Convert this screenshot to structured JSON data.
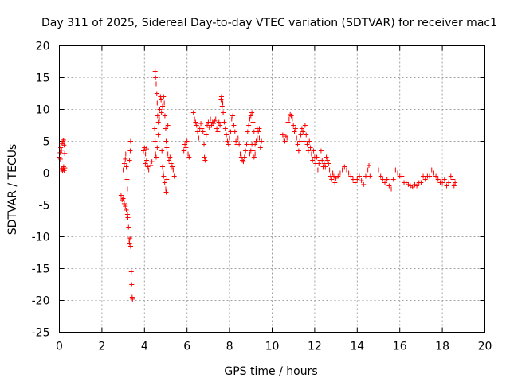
{
  "chart_data": {
    "type": "scatter",
    "title": "Day 311 of 2025, Sidereal Day-to-day VTEC variation (SDTVAR) for receiver mac1",
    "xlabel": "GPS time / hours",
    "ylabel": "SDTVAR / TECUs",
    "xlim": [
      0,
      20
    ],
    "ylim": [
      -25,
      20
    ],
    "xticks": [
      0,
      2,
      4,
      6,
      8,
      10,
      12,
      14,
      16,
      18,
      20
    ],
    "yticks": [
      -25,
      -20,
      -15,
      -10,
      -5,
      0,
      5,
      10,
      15,
      20
    ],
    "grid": true,
    "marker": "+",
    "color": "#ff0000",
    "series": [
      {
        "name": "SDTVAR",
        "points": [
          [
            0.0,
            2.5
          ],
          [
            0.03,
            3.2
          ],
          [
            0.06,
            4.0
          ],
          [
            0.1,
            3.6
          ],
          [
            0.13,
            4.6
          ],
          [
            0.17,
            5.0
          ],
          [
            0.2,
            5.2
          ],
          [
            0.22,
            4.4
          ],
          [
            0.25,
            3.1
          ],
          [
            0.05,
            2.2
          ],
          [
            0.08,
            0.5
          ],
          [
            0.12,
            0.7
          ],
          [
            0.15,
            0.3
          ],
          [
            0.18,
            0.6
          ],
          [
            0.2,
            1.0
          ],
          [
            0.23,
            0.4
          ],
          [
            0.26,
            0.8
          ],
          [
            2.9,
            -3.5
          ],
          [
            2.95,
            -4.2
          ],
          [
            3.0,
            -4.0
          ],
          [
            3.05,
            -4.8
          ],
          [
            3.1,
            -5.2
          ],
          [
            3.15,
            -5.8
          ],
          [
            3.2,
            -6.5
          ],
          [
            3.0,
            0.5
          ],
          [
            3.05,
            1.5
          ],
          [
            3.1,
            2.2
          ],
          [
            3.12,
            3.0
          ],
          [
            3.15,
            1.0
          ],
          [
            3.18,
            -1.0
          ],
          [
            3.2,
            -2.5
          ],
          [
            3.22,
            -7.0
          ],
          [
            3.25,
            -8.5
          ],
          [
            3.28,
            -10.5
          ],
          [
            3.3,
            -11.0
          ],
          [
            3.32,
            -10.2
          ],
          [
            3.35,
            -11.5
          ],
          [
            3.37,
            -13.5
          ],
          [
            3.38,
            -15.5
          ],
          [
            3.4,
            -17.5
          ],
          [
            3.42,
            -19.5
          ],
          [
            3.44,
            -19.8
          ],
          [
            3.3,
            2.0
          ],
          [
            3.33,
            3.5
          ],
          [
            3.35,
            5.0
          ],
          [
            3.95,
            3.5
          ],
          [
            4.0,
            4.0
          ],
          [
            4.05,
            3.0
          ],
          [
            4.1,
            2.0
          ],
          [
            4.15,
            1.0
          ],
          [
            4.2,
            0.5
          ],
          [
            4.05,
            1.5
          ],
          [
            4.1,
            3.8
          ],
          [
            4.3,
            1.2
          ],
          [
            4.35,
            1.8
          ],
          [
            4.5,
            16.0
          ],
          [
            4.52,
            15.0
          ],
          [
            4.55,
            14.0
          ],
          [
            4.58,
            12.5
          ],
          [
            4.6,
            11.0
          ],
          [
            4.62,
            9.0
          ],
          [
            4.65,
            8.0
          ],
          [
            4.48,
            7.0
          ],
          [
            4.5,
            5.0
          ],
          [
            4.52,
            3.0
          ],
          [
            4.55,
            2.5
          ],
          [
            4.6,
            4.0
          ],
          [
            4.65,
            6.0
          ],
          [
            4.7,
            8.5
          ],
          [
            4.72,
            10.0
          ],
          [
            4.75,
            12.0
          ],
          [
            4.78,
            11.5
          ],
          [
            4.8,
            9.5
          ],
          [
            4.82,
            3.5
          ],
          [
            4.85,
            1.0
          ],
          [
            4.88,
            0.0
          ],
          [
            4.9,
            -0.5
          ],
          [
            4.95,
            -1.5
          ],
          [
            5.0,
            -2.5
          ],
          [
            5.02,
            -3.0
          ],
          [
            5.05,
            -1.0
          ],
          [
            4.85,
            10.5
          ],
          [
            4.9,
            12.0
          ],
          [
            4.93,
            11.0
          ],
          [
            4.96,
            9.0
          ],
          [
            5.0,
            7.0
          ],
          [
            5.02,
            5.0
          ],
          [
            5.05,
            4.0
          ],
          [
            5.1,
            3.0
          ],
          [
            5.15,
            2.0
          ],
          [
            5.2,
            2.5
          ],
          [
            5.25,
            1.5
          ],
          [
            5.3,
            1.0
          ],
          [
            5.35,
            0.5
          ],
          [
            5.4,
            -0.5
          ],
          [
            5.1,
            7.5
          ],
          [
            5.85,
            3.5
          ],
          [
            5.9,
            4.5
          ],
          [
            5.95,
            4.0
          ],
          [
            6.0,
            5.0
          ],
          [
            6.05,
            3.0
          ],
          [
            6.1,
            2.5
          ],
          [
            6.3,
            9.5
          ],
          [
            6.35,
            8.5
          ],
          [
            6.4,
            8.0
          ],
          [
            6.45,
            7.5
          ],
          [
            6.5,
            6.5
          ],
          [
            6.55,
            5.5
          ],
          [
            6.6,
            7.0
          ],
          [
            6.65,
            7.8
          ],
          [
            6.7,
            7.0
          ],
          [
            6.75,
            6.5
          ],
          [
            6.8,
            4.5
          ],
          [
            6.82,
            2.5
          ],
          [
            6.85,
            2.0
          ],
          [
            6.9,
            6.0
          ],
          [
            6.95,
            7.5
          ],
          [
            7.0,
            8.0
          ],
          [
            7.05,
            7.2
          ],
          [
            7.1,
            8.5
          ],
          [
            7.15,
            7.5
          ],
          [
            7.2,
            8.0
          ],
          [
            7.25,
            7.8
          ],
          [
            7.3,
            8.2
          ],
          [
            7.35,
            8.5
          ],
          [
            7.4,
            7.0
          ],
          [
            7.45,
            6.5
          ],
          [
            7.5,
            8.0
          ],
          [
            7.55,
            7.5
          ],
          [
            7.6,
            11.5
          ],
          [
            7.62,
            12.0
          ],
          [
            7.65,
            10.5
          ],
          [
            7.68,
            11.0
          ],
          [
            7.7,
            9.5
          ],
          [
            7.75,
            8.0
          ],
          [
            7.8,
            7.0
          ],
          [
            7.85,
            6.0
          ],
          [
            7.9,
            5.0
          ],
          [
            7.95,
            4.5
          ],
          [
            8.0,
            5.5
          ],
          [
            8.05,
            6.5
          ],
          [
            8.1,
            8.5
          ],
          [
            8.15,
            9.0
          ],
          [
            8.2,
            7.5
          ],
          [
            8.25,
            6.5
          ],
          [
            8.3,
            5.0
          ],
          [
            8.35,
            4.5
          ],
          [
            8.4,
            5.5
          ],
          [
            8.45,
            4.5
          ],
          [
            8.5,
            3.0
          ],
          [
            8.55,
            2.5
          ],
          [
            8.6,
            2.0
          ],
          [
            8.65,
            1.8
          ],
          [
            8.7,
            2.5
          ],
          [
            8.75,
            3.5
          ],
          [
            8.8,
            4.5
          ],
          [
            8.85,
            6.5
          ],
          [
            8.9,
            7.5
          ],
          [
            8.95,
            8.5
          ],
          [
            9.0,
            9.0
          ],
          [
            9.05,
            9.5
          ],
          [
            9.1,
            8.0
          ],
          [
            9.15,
            6.5
          ],
          [
            9.2,
            4.5
          ],
          [
            9.25,
            5.0
          ],
          [
            9.3,
            5.5
          ],
          [
            9.35,
            6.5
          ],
          [
            9.4,
            5.5
          ],
          [
            9.45,
            4.0
          ],
          [
            9.5,
            5.0
          ],
          [
            8.95,
            3.0
          ],
          [
            9.0,
            3.5
          ],
          [
            9.05,
            4.5
          ],
          [
            9.1,
            3.5
          ],
          [
            9.15,
            2.5
          ],
          [
            9.2,
            3.0
          ],
          [
            9.3,
            7.0
          ],
          [
            9.4,
            7.0
          ],
          [
            10.5,
            6.0
          ],
          [
            10.55,
            5.5
          ],
          [
            10.6,
            5.0
          ],
          [
            10.65,
            5.8
          ],
          [
            10.7,
            5.5
          ],
          [
            10.75,
            8.0
          ],
          [
            10.8,
            8.5
          ],
          [
            10.85,
            9.2
          ],
          [
            10.9,
            9.0
          ],
          [
            10.95,
            8.5
          ],
          [
            11.0,
            7.5
          ],
          [
            11.05,
            6.5
          ],
          [
            11.1,
            7.0
          ],
          [
            11.15,
            5.5
          ],
          [
            11.2,
            4.5
          ],
          [
            11.25,
            3.5
          ],
          [
            11.3,
            5.0
          ],
          [
            11.35,
            6.0
          ],
          [
            11.4,
            7.0
          ],
          [
            11.45,
            6.5
          ],
          [
            11.5,
            5.0
          ],
          [
            11.55,
            7.5
          ],
          [
            11.6,
            6.0
          ],
          [
            11.65,
            4.5
          ],
          [
            11.7,
            3.5
          ],
          [
            11.75,
            5.0
          ],
          [
            11.8,
            4.0
          ],
          [
            11.85,
            3.0
          ],
          [
            11.9,
            2.0
          ],
          [
            11.95,
            3.5
          ],
          [
            12.0,
            2.5
          ],
          [
            12.05,
            1.5
          ],
          [
            12.1,
            2.5
          ],
          [
            12.15,
            0.5
          ],
          [
            12.2,
            1.5
          ],
          [
            12.25,
            2.0
          ],
          [
            12.3,
            3.5
          ],
          [
            12.35,
            2.0
          ],
          [
            12.4,
            1.0
          ],
          [
            12.45,
            1.5
          ],
          [
            12.5,
            1.0
          ],
          [
            12.55,
            2.5
          ],
          [
            12.6,
            2.0
          ],
          [
            12.65,
            1.5
          ],
          [
            12.7,
            0.5
          ],
          [
            12.75,
            -0.5
          ],
          [
            12.8,
            -1.0
          ],
          [
            12.85,
            0.0
          ],
          [
            12.9,
            -0.5
          ],
          [
            12.95,
            -1.5
          ],
          [
            13.0,
            -0.8
          ],
          [
            13.1,
            -0.5
          ],
          [
            13.2,
            0.0
          ],
          [
            13.3,
            0.5
          ],
          [
            13.4,
            1.0
          ],
          [
            13.5,
            0.5
          ],
          [
            13.6,
            0.0
          ],
          [
            13.7,
            -0.5
          ],
          [
            13.8,
            -1.0
          ],
          [
            13.9,
            -1.5
          ],
          [
            14.0,
            -1.0
          ],
          [
            14.1,
            -0.5
          ],
          [
            14.2,
            -1.2
          ],
          [
            14.3,
            -1.8
          ],
          [
            14.4,
            -0.5
          ],
          [
            14.5,
            0.5
          ],
          [
            14.55,
            1.2
          ],
          [
            14.6,
            -0.5
          ],
          [
            15.0,
            0.5
          ],
          [
            15.1,
            -0.5
          ],
          [
            15.2,
            -1.0
          ],
          [
            15.3,
            -1.5
          ],
          [
            15.4,
            -1.0
          ],
          [
            15.5,
            -2.0
          ],
          [
            15.6,
            -2.5
          ],
          [
            15.7,
            -1.0
          ],
          [
            15.8,
            0.5
          ],
          [
            15.9,
            0.0
          ],
          [
            16.0,
            -0.5
          ],
          [
            16.1,
            -0.5
          ],
          [
            16.2,
            -1.5
          ],
          [
            16.3,
            -1.5
          ],
          [
            16.4,
            -1.8
          ],
          [
            16.5,
            -2.0
          ],
          [
            16.6,
            -2.2
          ],
          [
            16.7,
            -1.8
          ],
          [
            16.8,
            -2.0
          ],
          [
            16.9,
            -1.5
          ],
          [
            17.0,
            -1.5
          ],
          [
            17.1,
            -0.5
          ],
          [
            17.2,
            -1.0
          ],
          [
            17.3,
            -0.5
          ],
          [
            17.4,
            -0.5
          ],
          [
            17.5,
            0.5
          ],
          [
            17.6,
            0.0
          ],
          [
            17.7,
            -0.5
          ],
          [
            17.8,
            -1.0
          ],
          [
            17.9,
            -1.5
          ],
          [
            18.0,
            -1.5
          ],
          [
            18.1,
            -1.0
          ],
          [
            18.2,
            -2.0
          ],
          [
            18.3,
            -1.5
          ],
          [
            18.4,
            -0.5
          ],
          [
            18.5,
            -1.0
          ],
          [
            18.55,
            -2.0
          ],
          [
            18.6,
            -1.5
          ]
        ]
      }
    ]
  }
}
